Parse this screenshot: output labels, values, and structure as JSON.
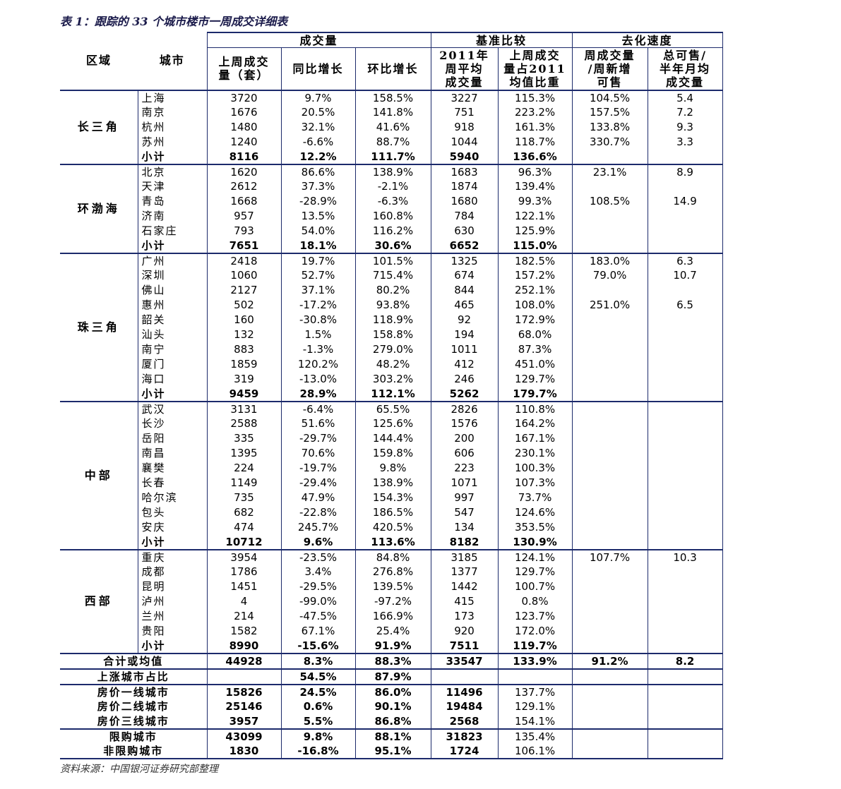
{
  "title": "表 1：跟踪的 33 个城市楼市一周成交详细表",
  "header": {
    "groups": [
      "成交量",
      "基准比较",
      "去化速度"
    ],
    "columns": [
      [
        "区域"
      ],
      [
        "城市"
      ],
      [
        "上周成交",
        "量（套）"
      ],
      [
        "同比增长"
      ],
      [
        "环比增长"
      ],
      [
        "2011年",
        "周平均",
        "成交量"
      ],
      [
        "上周成交",
        "量占2011",
        "均值比重"
      ],
      [
        "周成交量",
        "/周新增",
        "可售"
      ],
      [
        "总可售/",
        "半年月均",
        "成交量"
      ]
    ]
  },
  "regions": [
    {
      "name": "长三角",
      "rows": [
        [
          "上海",
          "3720",
          "9.7%",
          "158.5%",
          "3227",
          "115.3%",
          "104.5%",
          "5.4"
        ],
        [
          "南京",
          "1676",
          "20.5%",
          "141.8%",
          "751",
          "223.2%",
          "157.5%",
          "7.2"
        ],
        [
          "杭州",
          "1480",
          "32.1%",
          "41.6%",
          "918",
          "161.3%",
          "133.8%",
          "9.3"
        ],
        [
          "苏州",
          "1240",
          "-6.6%",
          "88.7%",
          "1044",
          "118.7%",
          "330.7%",
          "3.3"
        ],
        [
          "小计",
          "8116",
          "12.2%",
          "111.7%",
          "5940",
          "136.6%"
        ]
      ]
    },
    {
      "name": "环渤海",
      "rows": [
        [
          "北京",
          "1620",
          "86.6%",
          "138.9%",
          "1683",
          "96.3%",
          "23.1%",
          "8.9"
        ],
        [
          "天津",
          "2612",
          "37.3%",
          "-2.1%",
          "1874",
          "139.4%"
        ],
        [
          "青岛",
          "1668",
          "-28.9%",
          "-6.3%",
          "1680",
          "99.3%",
          "108.5%",
          "14.9"
        ],
        [
          "济南",
          "957",
          "13.5%",
          "160.8%",
          "784",
          "122.1%"
        ],
        [
          "石家庄",
          "793",
          "54.0%",
          "116.2%",
          "630",
          "125.9%"
        ],
        [
          "小计",
          "7651",
          "18.1%",
          "30.6%",
          "6652",
          "115.0%"
        ]
      ]
    },
    {
      "name": "珠三角",
      "rows": [
        [
          "广州",
          "2418",
          "19.7%",
          "101.5%",
          "1325",
          "182.5%",
          "183.0%",
          "6.3"
        ],
        [
          "深圳",
          "1060",
          "52.7%",
          "715.4%",
          "674",
          "157.2%",
          "79.0%",
          "10.7"
        ],
        [
          "佛山",
          "2127",
          "37.1%",
          "80.2%",
          "844",
          "252.1%"
        ],
        [
          "惠州",
          "502",
          "-17.2%",
          "93.8%",
          "465",
          "108.0%",
          "251.0%",
          "6.5"
        ],
        [
          "韶关",
          "160",
          "-30.8%",
          "118.9%",
          "92",
          "172.9%"
        ],
        [
          "汕头",
          "132",
          "1.5%",
          "158.8%",
          "194",
          "68.0%"
        ],
        [
          "南宁",
          "883",
          "-1.3%",
          "279.0%",
          "1011",
          "87.3%"
        ],
        [
          "厦门",
          "1859",
          "120.2%",
          "48.2%",
          "412",
          "451.0%"
        ],
        [
          "海口",
          "319",
          "-13.0%",
          "303.2%",
          "246",
          "129.7%"
        ],
        [
          "小计",
          "9459",
          "28.9%",
          "112.1%",
          "5262",
          "179.7%"
        ]
      ]
    },
    {
      "name": "中部",
      "rows": [
        [
          "武汉",
          "3131",
          "-6.4%",
          "65.5%",
          "2826",
          "110.8%"
        ],
        [
          "长沙",
          "2588",
          "51.6%",
          "125.6%",
          "1576",
          "164.2%"
        ],
        [
          "岳阳",
          "335",
          "-29.7%",
          "144.4%",
          "200",
          "167.1%"
        ],
        [
          "南昌",
          "1395",
          "70.6%",
          "159.8%",
          "606",
          "230.1%"
        ],
        [
          "襄樊",
          "224",
          "-19.7%",
          "9.8%",
          "223",
          "100.3%"
        ],
        [
          "长春",
          "1149",
          "-29.4%",
          "138.9%",
          "1071",
          "107.3%"
        ],
        [
          "哈尔滨",
          "735",
          "47.9%",
          "154.3%",
          "997",
          "73.7%"
        ],
        [
          "包头",
          "682",
          "-22.8%",
          "186.5%",
          "547",
          "124.6%"
        ],
        [
          "安庆",
          "474",
          "245.7%",
          "420.5%",
          "134",
          "353.5%"
        ],
        [
          "小计",
          "10712",
          "9.6%",
          "113.6%",
          "8182",
          "130.9%"
        ]
      ]
    },
    {
      "name": "西部",
      "rows": [
        [
          "重庆",
          "3954",
          "-23.5%",
          "84.8%",
          "3185",
          "124.1%",
          "107.7%",
          "10.3"
        ],
        [
          "成都",
          "1786",
          "3.4%",
          "276.8%",
          "1377",
          "129.7%"
        ],
        [
          "昆明",
          "1451",
          "-29.5%",
          "139.5%",
          "1442",
          "100.7%"
        ],
        [
          "泸州",
          "4",
          "-99.0%",
          "-97.2%",
          "415",
          "0.8%"
        ],
        [
          "兰州",
          "214",
          "-47.5%",
          "166.9%",
          "173",
          "123.7%"
        ],
        [
          "贵阳",
          "1582",
          "67.1%",
          "25.4%",
          "920",
          "172.0%"
        ],
        [
          "小计",
          "8990",
          "-15.6%",
          "91.9%",
          "7511",
          "119.7%"
        ]
      ]
    }
  ],
  "summary": [
    [
      "合计或均值",
      "44928",
      "8.3%",
      "88.3%",
      "33547",
      "133.9%",
      "91.2%",
      "8.2"
    ],
    [
      "上涨城市占比",
      null,
      "54.5%",
      "87.9%"
    ],
    [
      "房价一线城市",
      "15826",
      "24.5%",
      "86.0%",
      "11496",
      "137.7%"
    ],
    [
      "房价二线城市",
      "25146",
      "0.6%",
      "90.1%",
      "19484",
      "129.1%"
    ],
    [
      "房价三线城市",
      "3957",
      "5.5%",
      "86.8%",
      "2568",
      "154.1%"
    ],
    [
      "限购城市",
      "43099",
      "9.8%",
      "88.1%",
      "31823",
      "135.4%"
    ],
    [
      "非限购城市",
      "1830",
      "-16.8%",
      "95.1%",
      "1724",
      "106.1%"
    ]
  ],
  "source": "资料来源：中国银河证券研究部整理"
}
